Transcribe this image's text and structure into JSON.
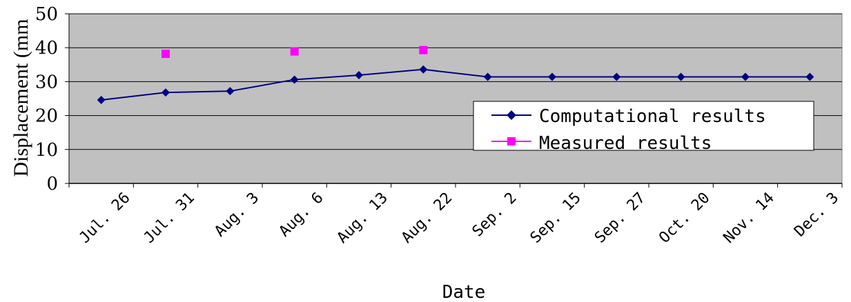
{
  "chart_data": {
    "type": "line",
    "xlabel": "Date",
    "ylabel": "Displacement (mm",
    "categories": [
      "Jul. 26",
      "Jul. 31",
      "Aug. 3",
      "Aug. 6",
      "Aug. 13",
      "Aug. 22",
      "Sep. 2",
      "Sep. 15",
      "Sep. 27",
      "Oct. 20",
      "Nov. 14",
      "Dec. 3"
    ],
    "ylim": [
      0,
      50
    ],
    "yticks": [
      "0",
      "10",
      "20",
      "30",
      "40",
      "50"
    ],
    "grid": true,
    "legend_position": "bottom-right",
    "series": [
      {
        "name": "Computational results",
        "color": "#000080",
        "marker": "diamond",
        "x": [
          0.5,
          1.5,
          2.5,
          3.5,
          4.5,
          5.5,
          6.5,
          7.5,
          8.5,
          9.5,
          10.5,
          11.5
        ],
        "values": [
          24.6,
          26.8,
          27.2,
          30.6,
          31.9,
          33.6,
          31.4,
          31.4,
          31.4,
          31.4,
          31.4,
          31.4
        ]
      },
      {
        "name": "Measured results",
        "color": "#ff00ff",
        "marker": "square",
        "x": [
          1.5,
          3.5,
          5.5
        ],
        "values": [
          38.2,
          38.9,
          39.3
        ]
      }
    ]
  }
}
